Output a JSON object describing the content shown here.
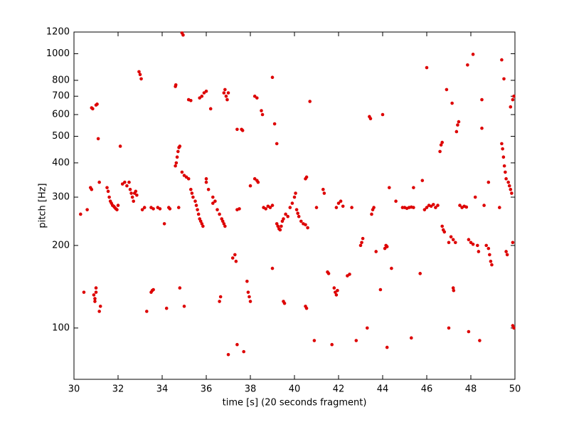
{
  "chart_data": {
    "type": "scatter",
    "xlabel": "time [s] (20 seconds fragment)",
    "ylabel": "pitch [Hz]",
    "yscale": "log",
    "color": "#dd0000",
    "xlim": [
      30,
      50
    ],
    "xticks": [
      30,
      32,
      34,
      36,
      38,
      40,
      42,
      44,
      46,
      48,
      50
    ],
    "ylim": [
      65,
      1200
    ],
    "yticks": [
      100,
      200,
      300,
      400,
      500,
      600,
      700,
      800,
      1000,
      1200
    ],
    "x": [
      30.3,
      30.45,
      30.6,
      30.75,
      30.8,
      30.8,
      30.85,
      31.0,
      31.05,
      30.9,
      30.95,
      31.0,
      31.0,
      30.95,
      31.1,
      31.15,
      31.2,
      31.15,
      31.5,
      31.55,
      31.6,
      31.65,
      31.7,
      31.75,
      31.8,
      31.85,
      31.9,
      31.95,
      32.0,
      32.1,
      32.2,
      32.3,
      32.4,
      32.5,
      32.55,
      32.6,
      32.65,
      32.7,
      32.75,
      32.8,
      32.85,
      32.95,
      33.0,
      33.05,
      33.1,
      33.2,
      33.3,
      33.5,
      33.6,
      33.8,
      33.9,
      33.5,
      33.55,
      33.6,
      34.1,
      34.2,
      34.3,
      34.35,
      34.6,
      34.62,
      34.6,
      34.64,
      34.68,
      34.72,
      34.76,
      34.8,
      34.8,
      34.75,
      34.9,
      35.0,
      35.1,
      35.2,
      34.9,
      34.95,
      35.0,
      35.2,
      35.3,
      35.3,
      35.4,
      35.35,
      35.5,
      35.55,
      35.6,
      35.65,
      35.7,
      35.75,
      35.8,
      35.85,
      35.7,
      35.8,
      35.9,
      36.0,
      36.0,
      36.0,
      36.1,
      36.2,
      36.3,
      36.4,
      36.3,
      36.5,
      36.6,
      36.7,
      36.75,
      36.8,
      36.85,
      36.6,
      36.65,
      36.8,
      36.85,
      36.9,
      36.95,
      37.0,
      37.0,
      37.2,
      37.3,
      37.35,
      37.4,
      37.6,
      37.65,
      37.4,
      37.5,
      37.4,
      37.7,
      37.85,
      37.9,
      37.95,
      38.0,
      38.0,
      38.2,
      38.3,
      38.2,
      38.3,
      38.35,
      38.5,
      38.55,
      38.6,
      38.7,
      38.8,
      38.9,
      39.0,
      39.0,
      39.0,
      39.1,
      39.2,
      39.2,
      39.25,
      39.3,
      39.35,
      39.4,
      39.45,
      39.5,
      39.5,
      39.55,
      39.6,
      39.7,
      39.8,
      39.9,
      40.0,
      40.05,
      40.1,
      40.15,
      40.2,
      40.3,
      40.4,
      40.5,
      40.6,
      40.5,
      40.55,
      40.5,
      40.55,
      40.7,
      40.9,
      41.0,
      41.3,
      41.35,
      41.5,
      41.55,
      41.7,
      41.9,
      42.0,
      42.1,
      42.2,
      41.8,
      41.85,
      41.9,
      41.95,
      42.4,
      42.5,
      42.6,
      42.8,
      43.0,
      43.05,
      43.1,
      43.3,
      43.4,
      43.45,
      43.5,
      43.55,
      43.6,
      43.7,
      43.9,
      44.0,
      44.1,
      44.2,
      44.15,
      44.2,
      44.3,
      44.4,
      44.6,
      44.9,
      45.0,
      45.1,
      45.2,
      45.3,
      45.4,
      45.3,
      45.4,
      45.7,
      45.8,
      46.0,
      45.9,
      46.0,
      46.1,
      46.2,
      46.3,
      46.4,
      46.5,
      46.6,
      46.65,
      46.7,
      46.7,
      46.75,
      46.8,
      46.9,
      47.0,
      47.0,
      47.1,
      47.2,
      47.3,
      47.15,
      47.2,
      47.22,
      47.35,
      47.4,
      47.45,
      47.5,
      47.6,
      47.7,
      47.8,
      47.85,
      47.9,
      47.9,
      48.0,
      48.1,
      48.1,
      48.2,
      48.3,
      48.35,
      48.4,
      48.5,
      48.5,
      48.6,
      48.7,
      48.8,
      48.85,
      48.9,
      48.95,
      48.8,
      49.3,
      49.4,
      49.4,
      49.44,
      49.48,
      49.52,
      49.56,
      49.6,
      49.5,
      49.6,
      49.65,
      49.7,
      49.75,
      49.8,
      49.85,
      49.8,
      49.9,
      49.9,
      49.95,
      49.9,
      49.95
    ],
    "values": [
      260,
      135,
      270,
      325,
      320,
      635,
      630,
      650,
      655,
      132,
      128,
      135,
      140,
      125,
      490,
      115,
      120,
      340,
      325,
      315,
      300,
      290,
      285,
      280,
      278,
      275,
      272,
      270,
      280,
      460,
      335,
      340,
      330,
      340,
      320,
      310,
      300,
      290,
      310,
      315,
      305,
      860,
      840,
      810,
      270,
      275,
      115,
      275,
      272,
      275,
      272,
      135,
      137,
      138,
      240,
      118,
      275,
      272,
      760,
      770,
      390,
      400,
      420,
      440,
      455,
      460,
      140,
      275,
      370,
      360,
      355,
      350,
      1190,
      1170,
      120,
      680,
      675,
      320,
      300,
      310,
      290,
      280,
      270,
      260,
      250,
      245,
      240,
      235,
      690,
      700,
      720,
      730,
      340,
      350,
      320,
      630,
      300,
      290,
      285,
      270,
      260,
      250,
      245,
      240,
      235,
      125,
      130,
      720,
      740,
      700,
      680,
      720,
      80,
      180,
      185,
      175,
      530,
      530,
      525,
      270,
      272,
      87,
      82,
      148,
      135,
      130,
      125,
      330,
      700,
      690,
      350,
      345,
      340,
      620,
      600,
      275,
      272,
      278,
      275,
      280,
      820,
      165,
      555,
      470,
      240,
      235,
      230,
      228,
      235,
      245,
      250,
      125,
      123,
      260,
      255,
      275,
      285,
      300,
      310,
      270,
      262,
      255,
      245,
      240,
      238,
      232,
      350,
      355,
      120,
      118,
      670,
      90,
      275,
      320,
      310,
      160,
      158,
      87,
      275,
      285,
      290,
      278,
      140,
      135,
      132,
      137,
      155,
      157,
      275,
      90,
      200,
      205,
      212,
      100,
      590,
      580,
      260,
      270,
      275,
      190,
      138,
      600,
      195,
      198,
      200,
      85,
      325,
      165,
      290,
      275,
      275,
      273,
      275,
      276,
      275,
      92,
      325,
      158,
      345,
      890,
      270,
      275,
      280,
      278,
      282,
      275,
      280,
      440,
      465,
      475,
      235,
      228,
      224,
      740,
      100,
      205,
      215,
      210,
      205,
      660,
      140,
      137,
      520,
      550,
      565,
      280,
      275,
      278,
      276,
      910,
      97,
      210,
      205,
      202,
      995,
      300,
      200,
      190,
      90,
      535,
      680,
      280,
      200,
      195,
      185,
      175,
      170,
      340,
      275,
      950,
      470,
      450,
      420,
      390,
      370,
      350,
      810,
      190,
      185,
      340,
      330,
      320,
      310,
      640,
      205,
      680,
      700,
      102,
      100
    ]
  }
}
